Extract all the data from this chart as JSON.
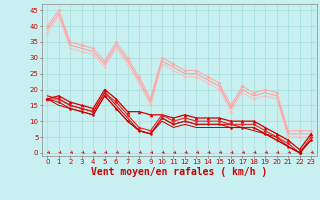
{
  "xlabel": "Vent moyen/en rafales ( km/h )",
  "xlim": [
    -0.5,
    23.5
  ],
  "ylim": [
    -1,
    47
  ],
  "yticks": [
    0,
    5,
    10,
    15,
    20,
    25,
    30,
    35,
    40,
    45
  ],
  "xticks": [
    0,
    1,
    2,
    3,
    4,
    5,
    6,
    7,
    8,
    9,
    10,
    11,
    12,
    13,
    14,
    15,
    16,
    17,
    18,
    19,
    20,
    21,
    22,
    23
  ],
  "bg_color": "#c8f0f0",
  "grid_color": "#a0d8d8",
  "series": [
    {
      "x": [
        0,
        1,
        2,
        3,
        4,
        5,
        6,
        7,
        8,
        9,
        10,
        11,
        12,
        13,
        14,
        15,
        16,
        17,
        18,
        19,
        20,
        21,
        22,
        23
      ],
      "y": [
        40,
        45,
        35,
        34,
        33,
        29,
        35,
        30,
        24,
        17,
        30,
        28,
        26,
        26,
        24,
        22,
        15,
        21,
        19,
        20,
        19,
        7,
        7,
        7
      ],
      "color": "#ffaaaa",
      "lw": 0.8,
      "marker": "D",
      "ms": 1.8
    },
    {
      "x": [
        0,
        1,
        2,
        3,
        4,
        5,
        6,
        7,
        8,
        9,
        10,
        11,
        12,
        13,
        14,
        15,
        16,
        17,
        18,
        19,
        20,
        21,
        22,
        23
      ],
      "y": [
        39,
        44,
        34,
        33,
        32,
        28,
        34,
        29,
        23,
        16,
        29,
        27,
        25,
        25,
        23,
        21,
        14,
        20,
        18,
        19,
        18,
        6,
        6,
        6
      ],
      "color": "#ff9999",
      "lw": 0.7,
      "marker": null,
      "ms": 0
    },
    {
      "x": [
        0,
        1,
        2,
        3,
        4,
        5,
        6,
        7,
        8,
        9,
        10,
        11,
        12,
        13,
        14,
        15,
        16,
        17,
        18,
        19,
        20,
        21,
        22,
        23
      ],
      "y": [
        38,
        43,
        33,
        32,
        31,
        27,
        33,
        28,
        22,
        15,
        28,
        26,
        24,
        24,
        22,
        20,
        13,
        19,
        17,
        18,
        17,
        5,
        5,
        5
      ],
      "color": "#ffbbbb",
      "lw": 0.7,
      "marker": "D",
      "ms": 1.5
    },
    {
      "x": [
        0,
        1,
        2,
        3,
        4,
        5,
        6,
        7,
        8,
        9,
        10,
        11,
        12,
        13,
        14,
        15,
        16,
        17,
        18,
        19,
        20,
        21,
        22,
        23
      ],
      "y": [
        17,
        18,
        16,
        15,
        14,
        20,
        17,
        13,
        13,
        12,
        12,
        11,
        12,
        11,
        11,
        11,
        10,
        10,
        10,
        8,
        6,
        4,
        1,
        6
      ],
      "color": "#cc0000",
      "lw": 0.9,
      "marker": "^",
      "ms": 2.2
    },
    {
      "x": [
        0,
        1,
        2,
        3,
        4,
        5,
        6,
        7,
        8,
        9,
        10,
        11,
        12,
        13,
        14,
        15,
        16,
        17,
        18,
        19,
        20,
        21,
        22,
        23
      ],
      "y": [
        17,
        17,
        15,
        14,
        13,
        19,
        16,
        12,
        8,
        7,
        12,
        10,
        11,
        10,
        10,
        10,
        9,
        9,
        9,
        7,
        5,
        3,
        0,
        5
      ],
      "color": "#ee2222",
      "lw": 0.8,
      "marker": "D",
      "ms": 1.8
    },
    {
      "x": [
        0,
        1,
        2,
        3,
        4,
        5,
        6,
        7,
        8,
        9,
        10,
        11,
        12,
        13,
        14,
        15,
        16,
        17,
        18,
        19,
        20,
        21,
        22,
        23
      ],
      "y": [
        18,
        17,
        15,
        14,
        13,
        19,
        15,
        11,
        7,
        6,
        11,
        9,
        10,
        9,
        9,
        9,
        9,
        8,
        8,
        6,
        5,
        2,
        0,
        4
      ],
      "color": "#dd1111",
      "lw": 0.8,
      "marker": null,
      "ms": 0
    },
    {
      "x": [
        0,
        1,
        2,
        3,
        4,
        5,
        6,
        7,
        8,
        9,
        10,
        11,
        12,
        13,
        14,
        15,
        16,
        17,
        18,
        19,
        20,
        21,
        22,
        23
      ],
      "y": [
        17,
        16,
        14,
        13,
        12,
        18,
        14,
        10,
        7,
        6,
        11,
        9,
        10,
        9,
        9,
        9,
        8,
        8,
        8,
        6,
        4,
        2,
        0,
        4
      ],
      "color": "#cc1111",
      "lw": 0.8,
      "marker": "D",
      "ms": 1.5
    },
    {
      "x": [
        0,
        1,
        2,
        3,
        4,
        5,
        6,
        7,
        8,
        9,
        10,
        11,
        12,
        13,
        14,
        15,
        16,
        17,
        18,
        19,
        20,
        21,
        22,
        23
      ],
      "y": [
        17,
        15,
        14,
        13,
        12,
        18,
        14,
        10,
        7,
        6,
        10,
        8,
        9,
        8,
        8,
        8,
        8,
        8,
        7,
        6,
        4,
        2,
        0,
        4
      ],
      "color": "#bb0000",
      "lw": 0.7,
      "marker": null,
      "ms": 0
    }
  ],
  "tick_fontsize": 5.0,
  "xlabel_fontsize": 7.0,
  "xlabel_color": "#cc0000",
  "tick_color": "#cc0000"
}
